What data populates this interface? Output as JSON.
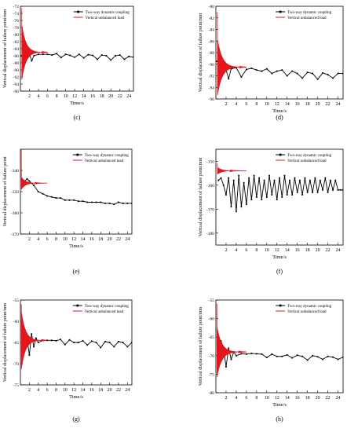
{
  "chart_data": [
    {
      "panel": "(c)",
      "type": "line",
      "title": "",
      "xlabel": "Time/s",
      "ylabel": "Vertical displacement of failure point/mm",
      "xlim": [
        0,
        25
      ],
      "ylim": [
        -96,
        -72
      ],
      "xticks": [
        2,
        4,
        6,
        8,
        10,
        12,
        14,
        16,
        18,
        20,
        22,
        24
      ],
      "yticks": [
        -96,
        -94,
        -92,
        -90,
        -88,
        -86,
        -84,
        -82,
        -80,
        -78,
        -76,
        -74,
        -72
      ],
      "legend": "top-right",
      "series": [
        {
          "name": "Two-way dynamic coupling",
          "color": "#000000",
          "marker": "square",
          "x": [
            0.2,
            0.5,
            1,
            1.5,
            2,
            2.5,
            3,
            4,
            5,
            6,
            7,
            8,
            9,
            10,
            11,
            12,
            13,
            14,
            15,
            16,
            17,
            18,
            19,
            20,
            21,
            22,
            23,
            24,
            25
          ],
          "y": [
            -86,
            -85.5,
            -85,
            -85.2,
            -85.6,
            -87.4,
            -86.0,
            -85.6,
            -85.6,
            -85.6,
            -85.8,
            -85.4,
            -86.5,
            -85.6,
            -85.9,
            -86.4,
            -85.6,
            -86.6,
            -85.7,
            -85.9,
            -87.0,
            -85.8,
            -86.0,
            -87.2,
            -86.0,
            -85.8,
            -87.0,
            -86.2,
            -86.4
          ]
        },
        {
          "name": "Vertical unbalanced load",
          "color": "#e8141b",
          "marker": "none",
          "decay": {
            "x_start": 0.3,
            "x_end": 6.0,
            "start_value": -72.5,
            "final_value": -85.0,
            "amplitude": 8.0
          }
        }
      ]
    },
    {
      "panel": "(d)",
      "type": "line",
      "title": "",
      "xlabel": "Time/s",
      "ylabel": "Vertical displacement of failure point/mm",
      "xlim": [
        0,
        25
      ],
      "ylim": [
        -96,
        -80
      ],
      "xticks": [
        2,
        4,
        6,
        8,
        10,
        12,
        14,
        16,
        18,
        20,
        22,
        24
      ],
      "yticks": [
        -96,
        -94,
        -92,
        -90,
        -88,
        -86,
        -84,
        -82,
        -80
      ],
      "legend": "top-right",
      "series": [
        {
          "name": "Two-way dynamic coupling",
          "color": "#000000",
          "marker": "square",
          "x": [
            0.2,
            0.5,
            1,
            1.5,
            2,
            2.5,
            3,
            4,
            5,
            6,
            7,
            8,
            9,
            10,
            11,
            12,
            13,
            14,
            15,
            16,
            17,
            18,
            19,
            20,
            21,
            22,
            23,
            24,
            25
          ],
          "y": [
            -89.5,
            -89.3,
            -90,
            -90.5,
            -91,
            -92.5,
            -90.8,
            -90.6,
            -92.2,
            -90.9,
            -90.7,
            -91.0,
            -91.2,
            -90.8,
            -91.6,
            -91.2,
            -91.0,
            -92.0,
            -91.2,
            -91.6,
            -92.4,
            -91.4,
            -91.6,
            -92.6,
            -91.5,
            -91.8,
            -92.4,
            -91.6,
            -91.6
          ]
        },
        {
          "name": "Vertical unbalanced load",
          "color": "#e8141b",
          "marker": "none",
          "decay": {
            "x_start": 0.3,
            "x_end": 6.0,
            "start_value": -81.0,
            "final_value": -90.5,
            "amplitude": 5.0
          }
        }
      ]
    },
    {
      "panel": "(e)",
      "type": "line",
      "title": "",
      "xlabel": "Time/s",
      "ylabel": "Vertical displacement of failure point",
      "xlim": [
        0,
        25
      ],
      "ylim": [
        -370,
        -330
      ],
      "xticks": [
        2,
        4,
        6,
        8,
        10,
        12,
        14,
        16,
        18,
        20,
        22,
        24
      ],
      "yticks": [
        -370,
        -360,
        -350,
        -340
      ],
      "legend": "top-right",
      "series": [
        {
          "name": "Two-way dynamic coupling",
          "color": "#000000",
          "marker": "square",
          "x": [
            1,
            1.5,
            2,
            3,
            4,
            5,
            6,
            7,
            8,
            9,
            10,
            11,
            12,
            13,
            14,
            15,
            16,
            17,
            18,
            19,
            20,
            21,
            22,
            23,
            24,
            25
          ],
          "y": [
            -345,
            -344,
            -345,
            -347,
            -350,
            -351,
            -352,
            -352.5,
            -353,
            -353,
            -354,
            -354,
            -354,
            -354.5,
            -354.5,
            -355,
            -355,
            -355,
            -355,
            -355.5,
            -355.5,
            -356,
            -355,
            -355.5,
            -355.5,
            -355.5
          ]
        },
        {
          "name": "Vertical unbalanced load",
          "color": "#e8141b",
          "marker": "none",
          "decay": {
            "x_start": 0.2,
            "x_end": 6.0,
            "start_value": -330.0,
            "final_value": -346.0,
            "amplitude": 3.0
          }
        }
      ]
    },
    {
      "panel": "(f)",
      "type": "line",
      "title": "",
      "xlabel": "Time/s",
      "ylabel": "Vertical displacement of failure point/mm",
      "xlim": [
        0,
        25
      ],
      "ylim": [
        -185,
        -145
      ],
      "xticks": [
        2,
        4,
        6,
        8,
        10,
        12,
        14,
        16,
        18,
        20,
        22,
        24
      ],
      "yticks": [
        -180,
        -170,
        -160,
        -150
      ],
      "legend": "top-right",
      "series": [
        {
          "name": "Two-way dynamic coupling",
          "color": "#000000",
          "marker": "square",
          "x": [
            0.5,
            1,
            1.5,
            2,
            2.5,
            3,
            3.5,
            4,
            4.5,
            5,
            5.5,
            6,
            6.5,
            7,
            7.5,
            8,
            8.5,
            9,
            9.5,
            10,
            10.5,
            11,
            11.5,
            12,
            12.5,
            13,
            13.5,
            14,
            14.5,
            15,
            15.5,
            16,
            16.5,
            17,
            17.5,
            18,
            18.5,
            19,
            19.5,
            20,
            20.5,
            21,
            21.5,
            22,
            22.5,
            23,
            23.5,
            24,
            24.5,
            25
          ],
          "y": [
            -158,
            -157,
            -160,
            -164,
            -157,
            -169,
            -158,
            -171,
            -156,
            -169,
            -159,
            -168,
            -157,
            -166,
            -156,
            -165,
            -157,
            -166,
            -158,
            -165,
            -156,
            -164,
            -158,
            -166,
            -157,
            -165,
            -156,
            -164,
            -158,
            -164,
            -157,
            -163,
            -158,
            -164,
            -157,
            -163,
            -158,
            -163,
            -157,
            -163,
            -158,
            -162,
            -157,
            -163,
            -158,
            -162,
            -158,
            -162,
            -162,
            -162
          ]
        },
        {
          "name": "Vertical unbalanced load",
          "color": "#e8141b",
          "marker": "none",
          "decay": {
            "x_start": 0.3,
            "x_end": 6.0,
            "start_value": -151.0,
            "final_value": -154.0,
            "amplitude": 1.5
          }
        }
      ]
    },
    {
      "panel": "(g)",
      "type": "line",
      "title": "",
      "xlabel": "Time/s",
      "ylabel": "Vertical displacement of failure point/mm",
      "xlim": [
        0,
        25
      ],
      "ylim": [
        -75,
        -55
      ],
      "xticks": [
        2,
        4,
        6,
        8,
        10,
        12,
        14,
        16,
        18,
        20,
        22,
        24
      ],
      "yticks": [
        -75,
        -70,
        -65,
        -60,
        -55
      ],
      "legend": "top-right",
      "series": [
        {
          "name": "Two-way dynamic coupling",
          "color": "#000000",
          "marker": "square",
          "x": [
            1,
            1.5,
            2,
            2.5,
            3,
            3.5,
            4,
            5,
            6,
            7,
            8,
            9,
            10,
            11,
            12,
            13,
            14,
            15,
            16,
            17,
            18,
            19,
            20,
            21,
            22,
            23,
            24,
            25
          ],
          "y": [
            -62,
            -64,
            -68,
            -63,
            -66,
            -64,
            -65,
            -64.5,
            -64.5,
            -64.5,
            -64.6,
            -64.3,
            -65.5,
            -64.4,
            -65.0,
            -65.0,
            -64.6,
            -65.6,
            -64.7,
            -65.0,
            -66.2,
            -64.8,
            -65.0,
            -66.0,
            -64.8,
            -65.0,
            -66.0,
            -65.0
          ]
        },
        {
          "name": "Vertical unbalanced load",
          "color": "#e8141b",
          "marker": "none",
          "decay": {
            "x_start": 0.2,
            "x_end": 6.0,
            "start_value": -56.0,
            "final_value": -64.5,
            "amplitude": 7.0
          }
        }
      ]
    },
    {
      "panel": "(h)",
      "type": "line",
      "title": "",
      "xlabel": "Time/s",
      "ylabel": "Vertical displacement of failure point/mm",
      "xlim": [
        0,
        25
      ],
      "ylim": [
        -80,
        -55
      ],
      "xticks": [
        2,
        4,
        6,
        8,
        10,
        12,
        14,
        16,
        18,
        20,
        22,
        24
      ],
      "yticks": [
        -80,
        -75,
        -70,
        -65,
        -60,
        -55
      ],
      "legend": "top-right",
      "series": [
        {
          "name": "Two-way dynamic coupling",
          "color": "#000000",
          "marker": "square",
          "x": [
            1,
            1.5,
            2,
            2.5,
            3,
            3.5,
            4,
            5,
            6,
            7,
            8,
            9,
            10,
            11,
            12,
            13,
            14,
            15,
            16,
            17,
            18,
            19,
            20,
            21,
            22,
            23,
            24,
            25
          ],
          "y": [
            -66,
            -68,
            -73,
            -68,
            -71,
            -69,
            -70,
            -69.5,
            -69.6,
            -69.4,
            -69.5,
            -69.6,
            -70.5,
            -69.6,
            -70.2,
            -70.2,
            -69.8,
            -70.6,
            -69.9,
            -70.2,
            -71.2,
            -70.0,
            -70.3,
            -71.0,
            -70.2,
            -70.4,
            -71.0,
            -70.4
          ]
        },
        {
          "name": "Vertical unbalanced load",
          "color": "#e8141b",
          "marker": "none",
          "decay": {
            "x_start": 0.2,
            "x_end": 6.0,
            "start_value": -56.0,
            "final_value": -69.0,
            "amplitude": 7.0
          }
        }
      ]
    }
  ]
}
